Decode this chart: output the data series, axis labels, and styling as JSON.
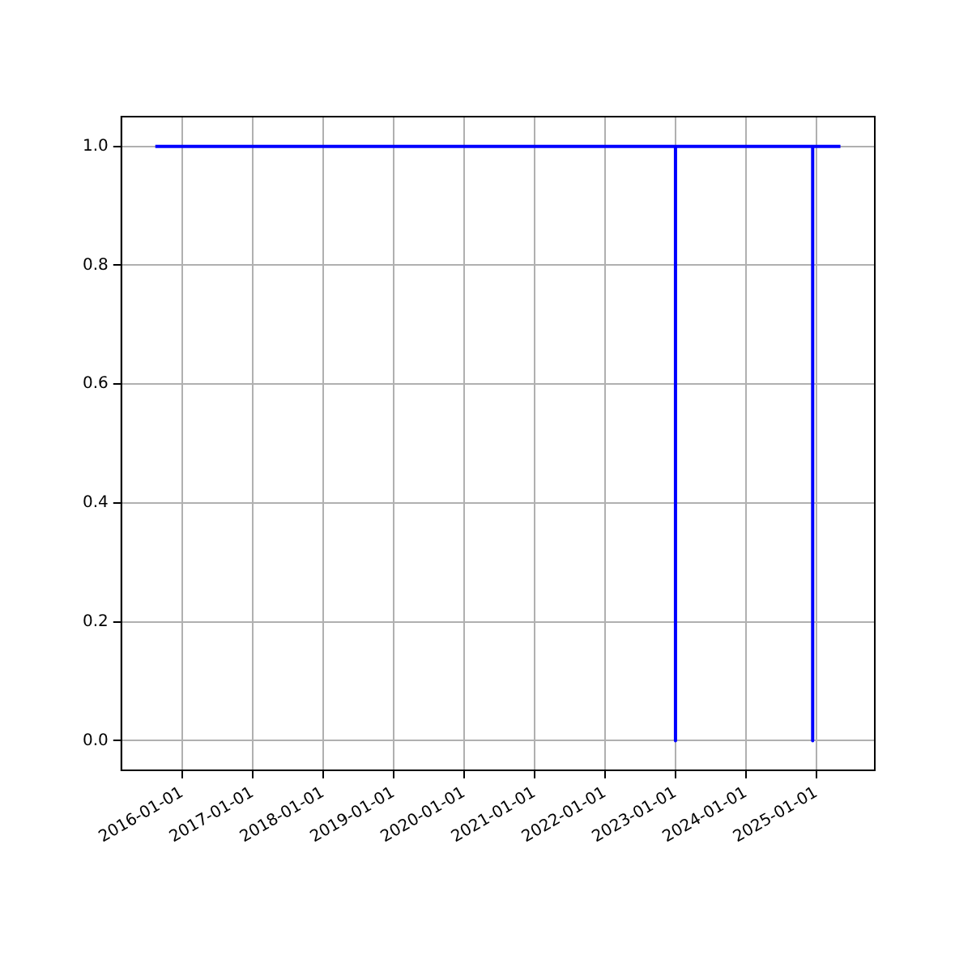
{
  "chart_data": {
    "type": "line",
    "x": [
      "2015-08-15",
      "2023-01-01",
      "2023-01-01",
      "2023-01-01",
      "2024-12-12",
      "2024-12-12",
      "2024-12-12",
      "2025-05-05"
    ],
    "series": [
      {
        "color": "#0000ff",
        "values": [
          1,
          1,
          0,
          1,
          1,
          0,
          1,
          1
        ]
      }
    ],
    "xlim": [
      "2015-02-20",
      "2025-10-30"
    ],
    "xticks": [
      "2016-01-01",
      "2017-01-01",
      "2018-01-01",
      "2019-01-01",
      "2020-01-01",
      "2021-01-01",
      "2022-01-01",
      "2023-01-01",
      "2024-01-01",
      "2025-01-01"
    ],
    "ylim": [
      -0.05,
      1.05
    ],
    "yticks": [
      {
        "value": 0,
        "label": "0.0"
      },
      {
        "value": 0.2,
        "label": "0.2"
      },
      {
        "value": 0.4,
        "label": "0.4"
      },
      {
        "value": 0.6,
        "label": "0.6"
      },
      {
        "value": 0.8,
        "label": "0.8"
      },
      {
        "value": 1,
        "label": "1.0"
      }
    ],
    "grid": true,
    "legend": false,
    "marker": "none",
    "line_style": "solid"
  }
}
